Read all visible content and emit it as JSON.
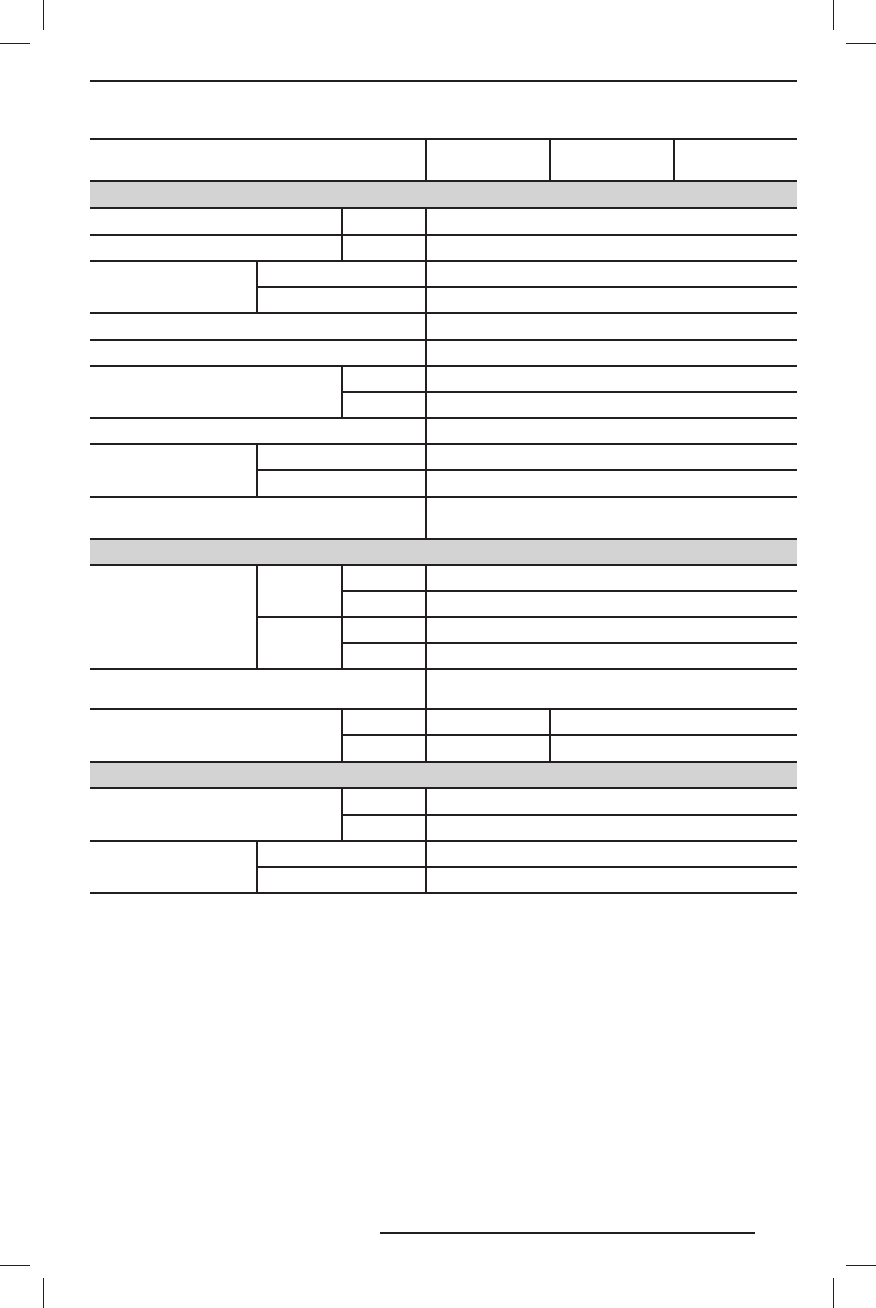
{
  "document": {
    "table": {
      "section_fill_color": "#d3d3d3",
      "rule_color": "#231f20",
      "cells": []
    }
  }
}
